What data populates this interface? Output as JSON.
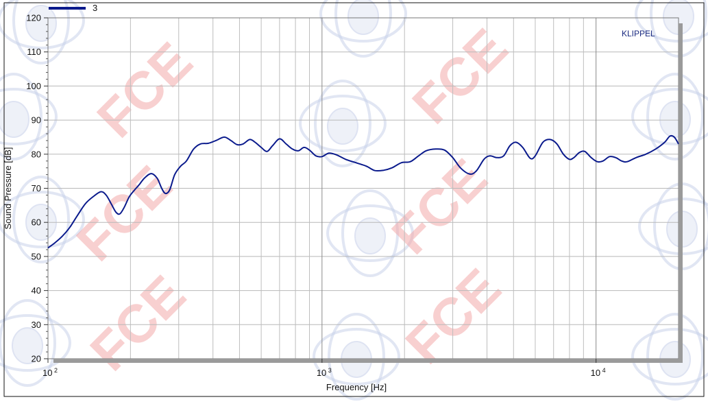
{
  "chart_data": {
    "type": "line",
    "xlabel": "Frequency [Hz]",
    "ylabel": "Sound Pressure [dB]",
    "x_scale": "log",
    "xlim": [
      100,
      20000
    ],
    "ylim": [
      20,
      120
    ],
    "y_ticks": [
      20,
      30,
      40,
      50,
      60,
      70,
      80,
      90,
      100,
      110,
      120
    ],
    "x_ticks": [
      {
        "value": 100,
        "base": "10",
        "exp": "2"
      },
      {
        "value": 1000,
        "base": "10",
        "exp": "3"
      },
      {
        "value": 10000,
        "base": "10",
        "exp": "4"
      }
    ],
    "grid": true,
    "legend_position": "top-left",
    "brand_label": "KLIPPEL",
    "watermark_text": "FCE",
    "series": [
      {
        "name": "3",
        "color": "#0a1a8c",
        "points": [
          [
            100,
            52.5
          ],
          [
            106,
            54
          ],
          [
            113,
            56
          ],
          [
            120,
            58.5
          ],
          [
            128,
            62
          ],
          [
            137,
            65.5
          ],
          [
            146,
            67.5
          ],
          [
            156,
            69
          ],
          [
            163,
            68
          ],
          [
            170,
            65.5
          ],
          [
            177,
            63
          ],
          [
            183,
            62.5
          ],
          [
            190,
            64.5
          ],
          [
            198,
            67.5
          ],
          [
            207,
            69.5
          ],
          [
            215,
            71
          ],
          [
            225,
            73
          ],
          [
            238,
            74.3
          ],
          [
            250,
            73
          ],
          [
            260,
            70
          ],
          [
            268,
            68.5
          ],
          [
            278,
            69.5
          ],
          [
            290,
            74
          ],
          [
            305,
            76.5
          ],
          [
            320,
            78
          ],
          [
            340,
            81.5
          ],
          [
            360,
            83
          ],
          [
            385,
            83.2
          ],
          [
            410,
            84
          ],
          [
            440,
            85
          ],
          [
            465,
            84
          ],
          [
            490,
            82.8
          ],
          [
            515,
            83
          ],
          [
            545,
            84.3
          ],
          [
            570,
            83.5
          ],
          [
            600,
            82
          ],
          [
            630,
            80.8
          ],
          [
            660,
            82.5
          ],
          [
            700,
            84.5
          ],
          [
            740,
            83
          ],
          [
            780,
            81.5
          ],
          [
            820,
            81
          ],
          [
            860,
            82
          ],
          [
            900,
            81.2
          ],
          [
            950,
            79.5
          ],
          [
            1000,
            79.3
          ],
          [
            1060,
            80.3
          ],
          [
            1130,
            79.8
          ],
          [
            1220,
            78.5
          ],
          [
            1330,
            77.5
          ],
          [
            1450,
            76.5
          ],
          [
            1560,
            75.2
          ],
          [
            1680,
            75.3
          ],
          [
            1800,
            76
          ],
          [
            1950,
            77.5
          ],
          [
            2100,
            77.8
          ],
          [
            2250,
            79.5
          ],
          [
            2400,
            81
          ],
          [
            2600,
            81.5
          ],
          [
            2800,
            81.2
          ],
          [
            3000,
            79
          ],
          [
            3200,
            76
          ],
          [
            3450,
            74.2
          ],
          [
            3650,
            75
          ],
          [
            3900,
            78.5
          ],
          [
            4100,
            79.5
          ],
          [
            4350,
            79
          ],
          [
            4600,
            79.5
          ],
          [
            4850,
            82.5
          ],
          [
            5100,
            83.5
          ],
          [
            5400,
            82
          ],
          [
            5750,
            78.8
          ],
          [
            6000,
            79.5
          ],
          [
            6400,
            83.5
          ],
          [
            6800,
            84.3
          ],
          [
            7200,
            83
          ],
          [
            7600,
            80
          ],
          [
            8000,
            78.5
          ],
          [
            8300,
            79
          ],
          [
            8700,
            80.5
          ],
          [
            9100,
            80.8
          ],
          [
            9600,
            79
          ],
          [
            10100,
            77.8
          ],
          [
            10600,
            78
          ],
          [
            11200,
            79.3
          ],
          [
            11800,
            79
          ],
          [
            12400,
            78
          ],
          [
            13000,
            77.8
          ],
          [
            14000,
            79
          ],
          [
            15200,
            80
          ],
          [
            16500,
            81.5
          ],
          [
            17800,
            83.5
          ],
          [
            18600,
            85.3
          ],
          [
            19300,
            85
          ],
          [
            20000,
            83
          ]
        ]
      }
    ]
  }
}
